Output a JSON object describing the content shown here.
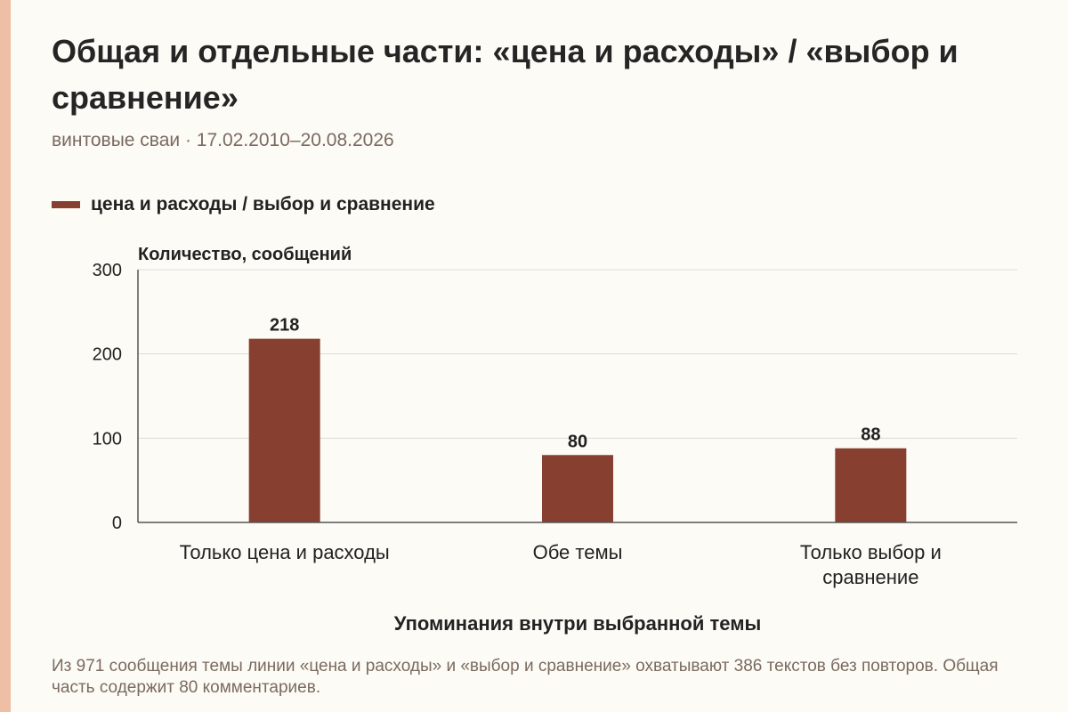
{
  "title": "Общая и отдельные части: «цена и расходы» / «выбор и сравнение»",
  "subtitle": "винтовые сваи · 17.02.2010–20.08.2026",
  "caption": "Из 971 сообщения темы линии «цена и расходы» и «выбор и сравнение» охватывают 386 текстов без повторов. Общая часть содержит 80 комментариев.",
  "colors": {
    "bar": "#873f30",
    "accent_stripe": "#efbfa5",
    "grid": "#dcdcdc",
    "axis": "#555555"
  },
  "chart_data": {
    "type": "bar",
    "categories": [
      "Только цена и расходы",
      "Обе темы",
      "Только выбор и сравнение"
    ],
    "series": [
      {
        "name": "цена и расходы / выбор и сравнение",
        "values": [
          218,
          80,
          88
        ]
      }
    ],
    "xlabel": "Упоминания внутри выбранной темы",
    "ylabel": "Количество, сообщений",
    "ylim": [
      0,
      300
    ],
    "yticks": [
      0,
      100,
      200,
      300
    ],
    "grid": true,
    "legend_position": "top-left",
    "data_labels": true
  }
}
